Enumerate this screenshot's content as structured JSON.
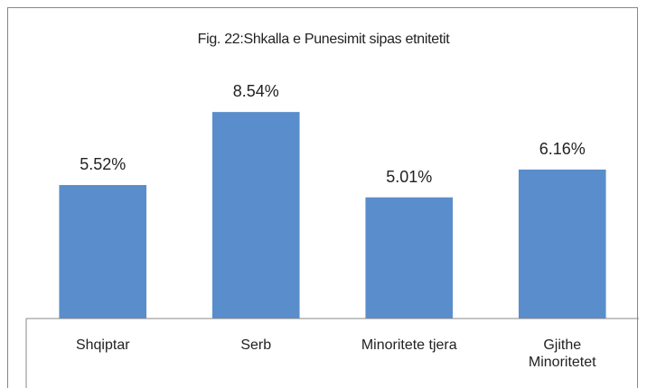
{
  "chart_data": {
    "type": "bar",
    "title": "Fig. 22:Shkalla e Punesimit sipas etnitetit",
    "categories": [
      "Shqiptar",
      "Serb",
      "Minoritete tjera",
      "Gjithe Minoritetet"
    ],
    "values": [
      5.52,
      8.54,
      5.01,
      6.16
    ],
    "value_labels": [
      "5.52%",
      "8.54%",
      "5.01%",
      "6.16%"
    ],
    "color": "#5a8dcc",
    "ylim": [
      0,
      10
    ]
  }
}
